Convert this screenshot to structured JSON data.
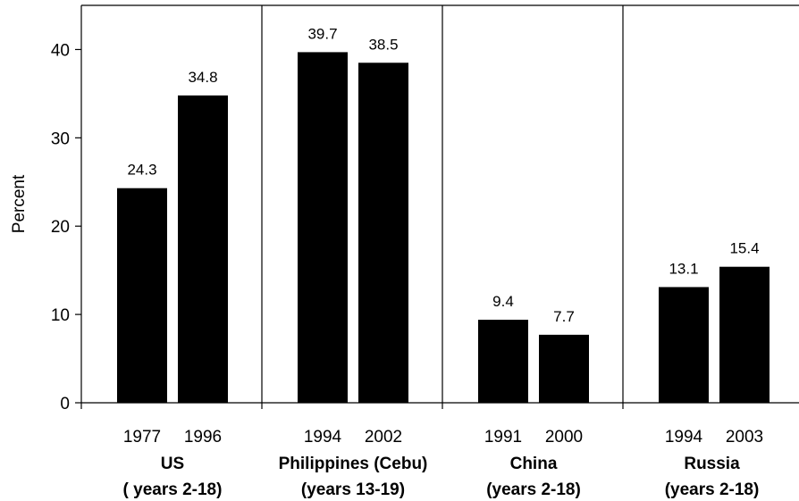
{
  "chart_data": {
    "type": "bar",
    "ylabel": "Percent",
    "ylim": [
      0,
      45
    ],
    "yticks": [
      0,
      10,
      20,
      30,
      40
    ],
    "grid": false,
    "bar_color": "#000000",
    "groups": [
      {
        "name": "US",
        "subtitle": "( years 2-18)",
        "years": [
          "1977",
          "1996"
        ],
        "values": [
          24.3,
          34.8
        ],
        "labels": [
          "24.3",
          "34.8"
        ]
      },
      {
        "name": "Philippines (Cebu)",
        "subtitle": "(years 13-19)",
        "years": [
          "1994",
          "2002"
        ],
        "values": [
          39.7,
          38.5
        ],
        "labels": [
          "39.7",
          "38.5"
        ]
      },
      {
        "name": "China",
        "subtitle": "(years  2-18)",
        "years": [
          "1991",
          "2000"
        ],
        "values": [
          9.4,
          7.7
        ],
        "labels": [
          "9.4",
          "7.7"
        ]
      },
      {
        "name": "Russia",
        "subtitle": "(years 2-18)",
        "years": [
          "1994",
          "2003"
        ],
        "values": [
          13.1,
          15.4
        ],
        "labels": [
          "13.1",
          "15.4"
        ]
      }
    ]
  }
}
